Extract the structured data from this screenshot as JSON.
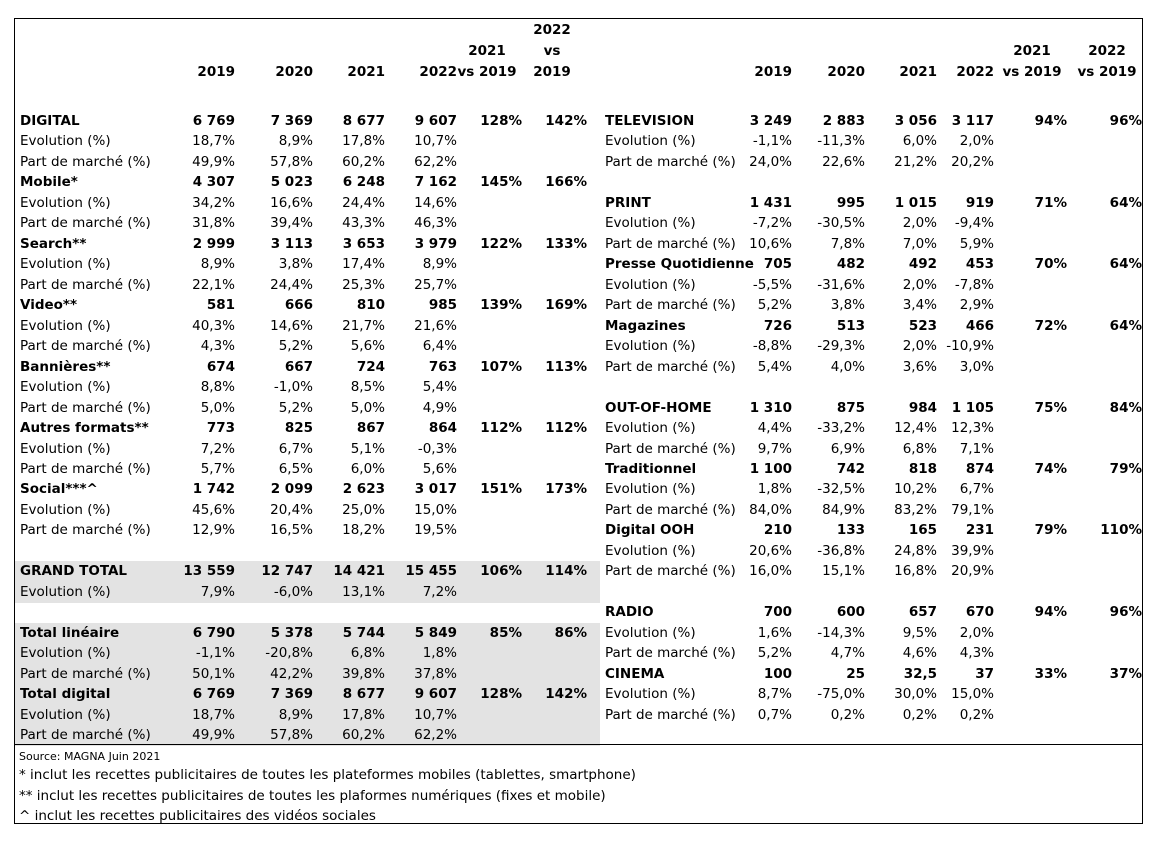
{
  "left": {
    "columns": [
      "2019",
      "2020",
      "2021",
      "2022",
      "2021\nvs 2019",
      "2022\nvs\n2019"
    ],
    "rows": [
      {
        "label": "DIGITAL",
        "bold": true,
        "cells": [
          "6 769",
          "7 369",
          "8 677",
          "9 607",
          "128%",
          "142%"
        ]
      },
      {
        "label": "Evolution (%)",
        "cells": [
          "18,7%",
          "8,9%",
          "17,8%",
          "10,7%"
        ]
      },
      {
        "label": "Part de marché (%)",
        "cells": [
          "49,9%",
          "57,8%",
          "60,2%",
          "62,2%"
        ]
      },
      {
        "label": "Mobile*",
        "bold": true,
        "cells": [
          "4 307",
          "5 023",
          "6 248",
          "7 162",
          "145%",
          "166%"
        ]
      },
      {
        "label": "Evolution (%)",
        "cells": [
          "34,2%",
          "16,6%",
          "24,4%",
          "14,6%"
        ]
      },
      {
        "label": "Part de marché (%)",
        "cells": [
          "31,8%",
          "39,4%",
          "43,3%",
          "46,3%"
        ]
      },
      {
        "label": "Search**",
        "bold": true,
        "cells": [
          "2 999",
          "3 113",
          "3 653",
          "3 979",
          "122%",
          "133%"
        ]
      },
      {
        "label": "Evolution (%)",
        "cells": [
          "8,9%",
          "3,8%",
          "17,4%",
          "8,9%"
        ]
      },
      {
        "label": "Part de marché (%)",
        "cells": [
          "22,1%",
          "24,4%",
          "25,3%",
          "25,7%"
        ]
      },
      {
        "label": "Video**",
        "bold": true,
        "cells": [
          "581",
          "666",
          "810",
          "985",
          "139%",
          "169%"
        ]
      },
      {
        "label": "Evolution (%)",
        "cells": [
          "40,3%",
          "14,6%",
          "21,7%",
          "21,6%"
        ]
      },
      {
        "label": "Part de marché (%)",
        "cells": [
          "4,3%",
          "5,2%",
          "5,6%",
          "6,4%"
        ]
      },
      {
        "label": "Bannières**",
        "bold": true,
        "cells": [
          "674",
          "667",
          "724",
          "763",
          "107%",
          "113%"
        ]
      },
      {
        "label": "Evolution (%)",
        "cells": [
          "8,8%",
          "-1,0%",
          "8,5%",
          "5,4%"
        ]
      },
      {
        "label": "Part de marché (%)",
        "cells": [
          "5,0%",
          "5,2%",
          "5,0%",
          "4,9%"
        ]
      },
      {
        "label": "Autres formats**",
        "bold": true,
        "cells": [
          "773",
          "825",
          "867",
          "864",
          "112%",
          "112%"
        ]
      },
      {
        "label": "Evolution (%)",
        "cells": [
          "7,2%",
          "6,7%",
          "5,1%",
          "-0,3%"
        ]
      },
      {
        "label": "Part de marché (%)",
        "cells": [
          "5,7%",
          "6,5%",
          "6,0%",
          "5,6%"
        ]
      },
      {
        "label": "Social***^",
        "bold": true,
        "cells": [
          "1 742",
          "2 099",
          "2 623",
          "3 017",
          "151%",
          "173%"
        ]
      },
      {
        "label": "Evolution (%)",
        "cells": [
          "45,6%",
          "20,4%",
          "25,0%",
          "15,0%"
        ]
      },
      {
        "label": "Part de marché (%)",
        "cells": [
          "12,9%",
          "16,5%",
          "18,2%",
          "19,5%"
        ]
      },
      {
        "label": "GRAND TOTAL",
        "bold": true,
        "shade": true,
        "space_before": true,
        "cells": [
          "13 559",
          "12 747",
          "14 421",
          "15 455",
          "106%",
          "114%"
        ]
      },
      {
        "label": "Evolution (%)",
        "shade": true,
        "cells": [
          "7,9%",
          "-6,0%",
          "13,1%",
          "7,2%"
        ]
      },
      {
        "label": "Total linéaire",
        "bold": true,
        "shade": true,
        "space_before": true,
        "cells": [
          "6 790",
          "5 378",
          "5 744",
          "5 849",
          "85%",
          "86%"
        ]
      },
      {
        "label": "Evolution (%)",
        "shade": true,
        "cells": [
          "-1,1%",
          "-20,8%",
          "6,8%",
          "1,8%"
        ]
      },
      {
        "label": "Part de marché (%)",
        "shade": true,
        "cells": [
          "50,1%",
          "42,2%",
          "39,8%",
          "37,8%"
        ]
      },
      {
        "label": "Total digital",
        "bold": true,
        "shade": true,
        "cells": [
          "6 769",
          "7 369",
          "8 677",
          "9 607",
          "128%",
          "142%"
        ]
      },
      {
        "label": "Evolution (%)",
        "shade": true,
        "cells": [
          "18,7%",
          "8,9%",
          "17,8%",
          "10,7%"
        ]
      },
      {
        "label": "Part de marché (%)",
        "shade": true,
        "cells": [
          "49,9%",
          "57,8%",
          "60,2%",
          "62,2%"
        ]
      }
    ]
  },
  "right": {
    "columns": [
      "2019",
      "2020",
      "2021",
      "2022",
      "2021\nvs 2019",
      "2022\nvs 2019"
    ],
    "rows": [
      {
        "label": "TELEVISION",
        "bold": true,
        "cells": [
          "3 249",
          "2 883",
          "3 056",
          "3 117",
          "94%",
          "96%"
        ]
      },
      {
        "label": "Evolution (%)",
        "cells": [
          "-1,1%",
          "-11,3%",
          "6,0%",
          "2,0%"
        ]
      },
      {
        "label": "Part de marché (%)",
        "cells": [
          "24,0%",
          "22,6%",
          "21,2%",
          "20,2%"
        ]
      },
      {
        "label": "PRINT",
        "bold": true,
        "space_before": true,
        "cells": [
          "1 431",
          "995",
          "1 015",
          "919",
          "71%",
          "64%"
        ]
      },
      {
        "label": "Evolution (%)",
        "cells": [
          "-7,2%",
          "-30,5%",
          "2,0%",
          "-9,4%"
        ]
      },
      {
        "label": "Part de marché (%)",
        "cells": [
          "10,6%",
          "7,8%",
          "7,0%",
          "5,9%"
        ]
      },
      {
        "label": "Presse Quotidienne",
        "bold": true,
        "cells": [
          "705",
          "482",
          "492",
          "453",
          "70%",
          "64%"
        ]
      },
      {
        "label": "Evolution (%)",
        "cells": [
          "-5,5%",
          "-31,6%",
          "2,0%",
          "-7,8%"
        ]
      },
      {
        "label": "Part de marché (%)",
        "cells": [
          "5,2%",
          "3,8%",
          "3,4%",
          "2,9%"
        ]
      },
      {
        "label": "Magazines",
        "bold": true,
        "cells": [
          "726",
          "513",
          "523",
          "466",
          "72%",
          "64%"
        ]
      },
      {
        "label": "Evolution (%)",
        "cells": [
          "-8,8%",
          "-29,3%",
          "2,0%",
          "-10,9%"
        ]
      },
      {
        "label": "Part de marché (%)",
        "cells": [
          "5,4%",
          "4,0%",
          "3,6%",
          "3,0%"
        ]
      },
      {
        "label": "OUT-OF-HOME",
        "bold": true,
        "space_before": true,
        "cells": [
          "1 310",
          "875",
          "984",
          "1 105",
          "75%",
          "84%"
        ]
      },
      {
        "label": "Evolution (%)",
        "cells": [
          "4,4%",
          "-33,2%",
          "12,4%",
          "12,3%"
        ]
      },
      {
        "label": "Part de marché (%)",
        "cells": [
          "9,7%",
          "6,9%",
          "6,8%",
          "7,1%"
        ]
      },
      {
        "label": "Traditionnel",
        "bold": true,
        "cells": [
          "1 100",
          "742",
          "818",
          "874",
          "74%",
          "79%"
        ]
      },
      {
        "label": "Evolution (%)",
        "cells": [
          "1,8%",
          "-32,5%",
          "10,2%",
          "6,7%"
        ]
      },
      {
        "label": "Part de marché (%)",
        "cells": [
          "84,0%",
          "84,9%",
          "83,2%",
          "79,1%"
        ]
      },
      {
        "label": "Digital OOH",
        "bold": true,
        "cells": [
          "210",
          "133",
          "165",
          "231",
          "79%",
          "110%"
        ]
      },
      {
        "label": "Evolution (%)",
        "cells": [
          "20,6%",
          "-36,8%",
          "24,8%",
          "39,9%"
        ]
      },
      {
        "label": "Part de marché (%)",
        "cells": [
          "16,0%",
          "15,1%",
          "16,8%",
          "20,9%"
        ]
      },
      {
        "label": "RADIO",
        "bold": true,
        "space_before": true,
        "cells": [
          "700",
          "600",
          "657",
          "670",
          "94%",
          "96%"
        ]
      },
      {
        "label": "Evolution (%)",
        "cells": [
          "1,6%",
          "-14,3%",
          "9,5%",
          "2,0%"
        ]
      },
      {
        "label": "Part de marché (%)",
        "cells": [
          "5,2%",
          "4,7%",
          "4,6%",
          "4,3%"
        ]
      },
      {
        "label": "CINEMA",
        "bold": true,
        "cells": [
          "100",
          "25",
          "32,5",
          "37",
          "33%",
          "37%"
        ]
      },
      {
        "label": "Evolution (%)",
        "cells": [
          "8,7%",
          "-75,0%",
          "30,0%",
          "15,0%"
        ]
      },
      {
        "label": "Part de marché (%)",
        "cells": [
          "0,7%",
          "0,2%",
          "0,2%",
          "0,2%"
        ]
      }
    ]
  },
  "footer": {
    "source": "Source: MAGNA Juin 2021",
    "notes": [
      "* inclut les recettes publicitaires de toutes les plateformes mobiles (tablettes, smartphone)",
      "** inclut les recettes publicitaires de toutes les plaformes numériques (fixes et mobile)",
      "^ inclut les recettes publicitaires des vidéos sociales"
    ]
  }
}
